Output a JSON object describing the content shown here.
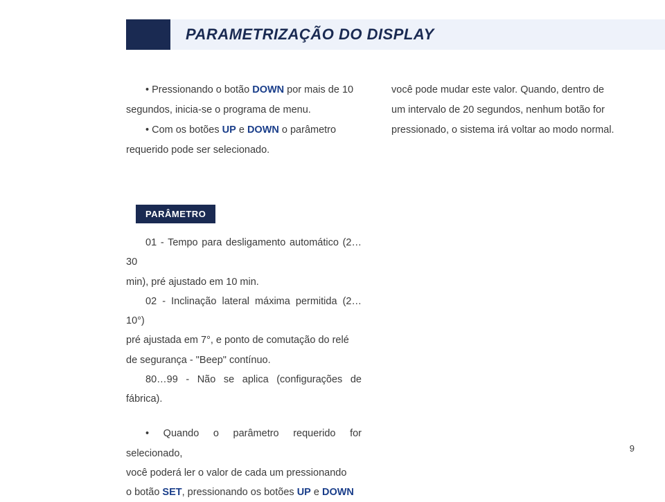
{
  "header": {
    "title": "PARAMETRIZAÇÃO DO DISPLAY"
  },
  "colLeft": {
    "line1a": "• Pressionando o botão ",
    "down1": "DOWN",
    "line1b": " por mais de 10",
    "line2": "segundos, inicia-se o programa de menu.",
    "line3a": "• Com os botões ",
    "up": "UP",
    "and": " e ",
    "down2": "DOWN",
    "line3b": " o parâmetro",
    "line4": "requerido pode ser selecionado."
  },
  "colRight": {
    "line1": "você pode mudar este valor. Quando, dentro de",
    "line2": "um intervalo de 20 segundos, nenhum botão for",
    "line3": "pressionado, o sistema irá voltar ao modo normal."
  },
  "param": {
    "badge": "PARÂMETRO",
    "p1a": "01 - Tempo para desligamento automático (2…30",
    "p1b": "min), pré ajustado em 10 min.",
    "p2a": "02 - Inclinação lateral máxima permitida (2…10°)",
    "p2b": "pré ajustada em 7°, e ponto de comutação do relé",
    "p2c": "de segurança - \"Beep\" contínuo.",
    "p3": "80…99 - Não se aplica (configurações de fábrica).",
    "p4a": "• Quando o parâmetro requerido for selecionado,",
    "p4b": "você poderá ler o valor de cada um pressionando",
    "p4c_a": "o botão ",
    "set": "SET",
    "p4c_b": ", pressionando os botões ",
    "up2": "UP",
    "and2": " e ",
    "down3": "DOWN"
  },
  "pageNumber": "9"
}
